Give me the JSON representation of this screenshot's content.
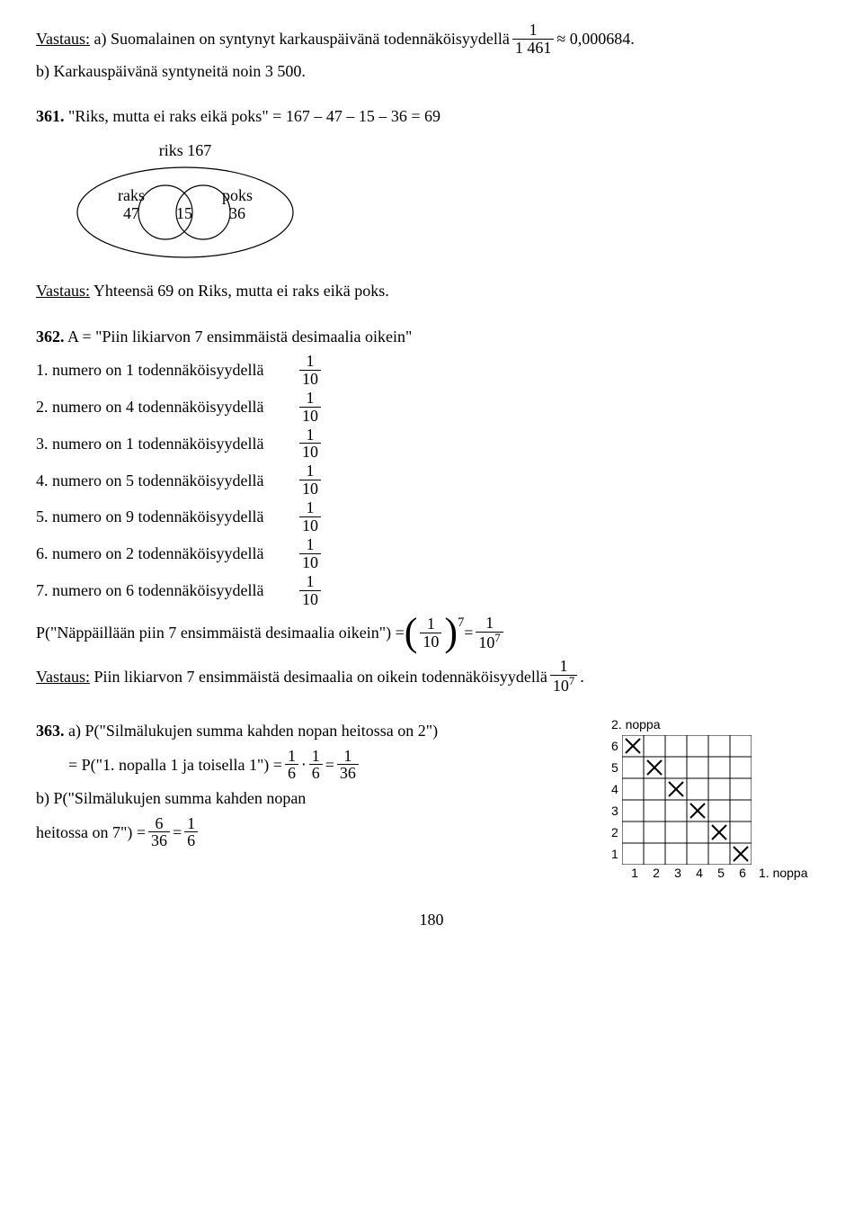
{
  "p1": {
    "ans_label": "Vastaus:",
    "a_text": " a) Suomalainen on syntynyt karkauspäivänä todennäköisyydellä ",
    "frac_num": "1",
    "frac_den": "1 461",
    "approx": "≈ 0,000684.",
    "b_text": "b) Karkauspäivänä syntyneitä noin 3 500."
  },
  "p361": {
    "num": "361.",
    "text": " \"Riks, mutta ei raks eikä poks\" = 167 – 47 – 15 – 36 = 69",
    "venn": {
      "outer_label": "riks 167",
      "left_label1": "raks",
      "left_label2": "47",
      "mid": "15",
      "right_label1": "poks",
      "right_label2": "36"
    },
    "ans_label": "Vastaus:",
    "ans_text": " Yhteensä 69 on Riks, mutta ei raks eikä poks."
  },
  "p362": {
    "num": "362.",
    "head": " A = \"Piin likiarvon 7 ensimmäistä desimaalia oikein\"",
    "items": [
      "1. numero on 1 todennäköisyydellä ",
      "2. numero on 4 todennäköisyydellä ",
      "3. numero on 1 todennäköisyydellä ",
      "4. numero on 5 todennäköisyydellä ",
      "5. numero on 9 todennäköisyydellä ",
      "6. numero on 2 todennäköisyydellä ",
      "7. numero on 6 todennäköisyydellä "
    ],
    "frac_num": "1",
    "frac_den": "10",
    "eq_left": "P(\"Näppäillään piin 7 ensimmäistä desimaalia oikein\") = ",
    "eq_exp": "7",
    "eq_mid": " = ",
    "eq_r_num": "1",
    "eq_r_den": "10",
    "eq_r_den_exp": "7",
    "ans_label": "Vastaus:",
    "ans_text": " Piin likiarvon 7 ensimmäistä desimaalia on oikein todennäköisyydellä ",
    "ans_frac_num": "1",
    "ans_frac_den": "10",
    "ans_frac_exp": "7",
    "ans_dot": "."
  },
  "p363": {
    "num": "363.",
    "a_text": " a) P(\"Silmälukujen summa kahden nopan heitossa on 2\")",
    "line2a": "= P(\"1. nopalla 1 ja toisella 1\") = ",
    "f1n": "1",
    "f1d": "6",
    "dot": "⋅",
    "f2n": "1",
    "f2d": "6",
    "eq": " = ",
    "f3n": "1",
    "f3d": "36",
    "b_text": "b) P(\"Silmälukujen summa kahden nopan",
    "b_text2a": "heitossa on 7\") = ",
    "f4n": "6",
    "f4d": "36",
    "eq2": " = ",
    "f5n": "1",
    "f5d": "6"
  },
  "grid": {
    "title_y": "2. noppa",
    "title_x": "1. noppa",
    "yticks": [
      "6",
      "5",
      "4",
      "3",
      "2",
      "1"
    ],
    "xticks": [
      "1",
      "2",
      "3",
      "4",
      "5",
      "6"
    ],
    "cell": 24,
    "grid_color": "#000000",
    "mark_color": "#000000",
    "marks": [
      [
        1,
        6
      ],
      [
        2,
        5
      ],
      [
        3,
        4
      ],
      [
        4,
        3
      ],
      [
        5,
        2
      ],
      [
        6,
        1
      ]
    ]
  },
  "pagefoot": "180"
}
